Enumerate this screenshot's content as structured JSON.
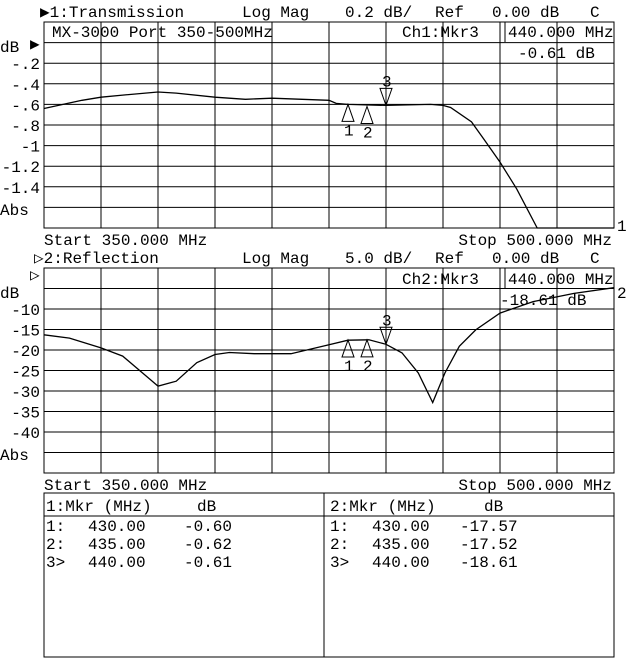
{
  "chart_data": [
    {
      "type": "line",
      "channel_label": "▶1:Transmission",
      "format": "Log Mag",
      "scale": "0.2 dB/",
      "ref_label": "Ref",
      "ref_value": "0.00 dB",
      "flag": "C",
      "title": "MX-3000 Port 350-500MHz",
      "marker_readout": {
        "label": "Ch1:Mkr3",
        "freq": "440.000 MHz",
        "value": "-0.61 dB"
      },
      "ylabel": "dB",
      "yformat_label": "Abs",
      "ytick_labels": [
        "-.2",
        "-.4",
        "-.6",
        "-.8",
        "-1",
        "-1.2",
        "-1.4"
      ],
      "yticks": [
        -0.2,
        -0.4,
        -0.6,
        -0.8,
        -1.0,
        -1.2,
        -1.4
      ],
      "ylim": [
        -1.8,
        0.2
      ],
      "xlim": [
        350,
        500
      ],
      "start_label": "Start 350.000 MHz",
      "stop_label": "Stop 500.000 MHz",
      "trace_end_label": "1",
      "grid": true,
      "x": [
        350,
        360,
        365,
        370.7,
        380,
        384.8,
        395,
        403,
        410,
        425,
        426.9,
        430,
        440,
        451.7,
        455,
        457,
        462.5,
        465.8,
        470,
        474.4,
        479.8,
        500
      ],
      "y": [
        -0.64,
        -0.56,
        -0.53,
        -0.51,
        -0.48,
        -0.49,
        -0.53,
        -0.55,
        -0.54,
        -0.56,
        -0.59,
        -0.6,
        -0.61,
        -0.6,
        -0.61,
        -0.63,
        -0.77,
        -0.94,
        -1.16,
        -1.42,
        -1.8,
        -1.8
      ],
      "markers": [
        {
          "id": "1",
          "freq": 430,
          "value": -0.6
        },
        {
          "id": "2",
          "freq": 435,
          "value": -0.62
        },
        {
          "id": "3",
          "freq": 440,
          "value": -0.61,
          "active": true
        }
      ]
    },
    {
      "type": "line",
      "channel_label": "▷2:Reflection",
      "format": "Log Mag",
      "scale": "5.0 dB/",
      "ref_label": "Ref",
      "ref_value": "0.00 dB",
      "flag": "C",
      "marker_readout": {
        "label": "Ch2:Mkr3",
        "freq": "440.000 MHz",
        "value": "-18.61 dB"
      },
      "ylabel": "dB",
      "yformat_label": "Abs",
      "ytick_labels": [
        "-10",
        "-15",
        "-20",
        "-25",
        "-30",
        "-35",
        "-40"
      ],
      "yticks": [
        -10,
        -15,
        -20,
        -25,
        -30,
        -35,
        -40
      ],
      "ylim": [
        -50,
        0
      ],
      "xlim": [
        350,
        500
      ],
      "start_label": "Start 350.000 MHz",
      "stop_label": "Stop 500.000 MHz",
      "trace_end_label": "2",
      "grid": true,
      "x": [
        350,
        356.7,
        365,
        370.7,
        380,
        384.8,
        390.2,
        395,
        398.8,
        405.3,
        415,
        425,
        430,
        435.5,
        440,
        444.2,
        448.5,
        452.3,
        455.5,
        459.3,
        463.6,
        470,
        478.7,
        489.5,
        500
      ],
      "y": [
        -16.3,
        -17.1,
        -19.5,
        -21.5,
        -28.8,
        -27.6,
        -23.1,
        -21.1,
        -20.6,
        -20.9,
        -20.9,
        -18.7,
        -17.6,
        -17.5,
        -18.6,
        -20.7,
        -25.6,
        -32.8,
        -25.6,
        -19.1,
        -15.1,
        -11.0,
        -8.2,
        -6.2,
        -4.8
      ],
      "markers": [
        {
          "id": "1",
          "freq": 430,
          "value": -17.57
        },
        {
          "id": "2",
          "freq": 435,
          "value": -17.52
        },
        {
          "id": "3",
          "freq": 440,
          "value": -18.61,
          "active": true
        }
      ]
    }
  ],
  "marker_table": [
    {
      "header_mkr": "1:Mkr (MHz)",
      "header_db": "dB",
      "rows": [
        {
          "id": "1:",
          "freq": "430.00",
          "db": "-0.60"
        },
        {
          "id": "2:",
          "freq": "435.00",
          "db": "-0.62"
        },
        {
          "id": "3>",
          "freq": "440.00",
          "db": "-0.61"
        }
      ]
    },
    {
      "header_mkr": "2:Mkr (MHz)",
      "header_db": "dB",
      "rows": [
        {
          "id": "1:",
          "freq": "430.00",
          "db": "-17.57"
        },
        {
          "id": "2:",
          "freq": "435.00",
          "db": "-17.52"
        },
        {
          "id": "3>",
          "freq": "440.00",
          "db": "-18.61"
        }
      ]
    }
  ]
}
